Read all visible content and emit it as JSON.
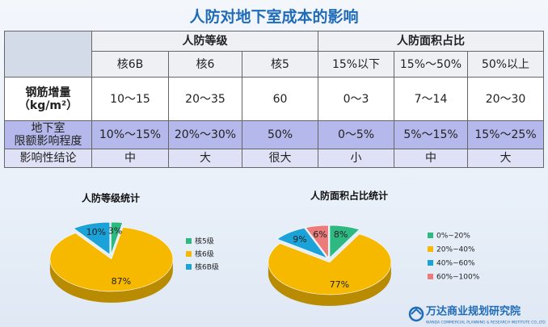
{
  "title": "人防对地下室成本的影响",
  "table": {
    "groups": [
      "人防等级",
      "人防面积占比"
    ],
    "columns": [
      "核6B",
      "核6",
      "核5",
      "15%以下",
      "15%～50%",
      "50%以上"
    ],
    "rows": [
      [
        "钢筋增量\n（kg/m²）",
        "10～15",
        "20～35",
        "60",
        "0～3",
        "7～14",
        "20～30"
      ],
      [
        "地下室\n限额影响程度",
        "10%～15%",
        "20%～30%",
        "50%",
        "0～5%",
        "5%～15%",
        "15%～25%"
      ],
      [
        "影响性结论",
        "中",
        "大",
        "很大",
        "小",
        "中",
        "大"
      ]
    ]
  },
  "chart_data": [
    {
      "type": "pie",
      "title": "人防等级统计",
      "categories": [
        "核5级",
        "核6级",
        "核6B级"
      ],
      "values": [
        3,
        87,
        10
      ],
      "value_labels": [
        "3%",
        "87%",
        "10%"
      ],
      "colors": [
        "#2fb982",
        "#f7b900",
        "#1ba2d9"
      ]
    },
    {
      "type": "pie",
      "title": "人防面积占比统计",
      "categories": [
        "0%~20%",
        "20%~40%",
        "40%~60%",
        "60%~100%"
      ],
      "values": [
        8,
        77,
        9,
        6
      ],
      "value_labels": [
        "8%",
        "77%",
        "9%",
        "6%"
      ],
      "colors": [
        "#2fb982",
        "#f7b900",
        "#1ba2d9",
        "#ec7b7b"
      ]
    }
  ],
  "footer": {
    "logo": "万达商业规划研究院",
    "subtitle": "WANDA COMMERCIAL PLANNING & RESEARCH INSTITUTE CO.,LTD"
  }
}
